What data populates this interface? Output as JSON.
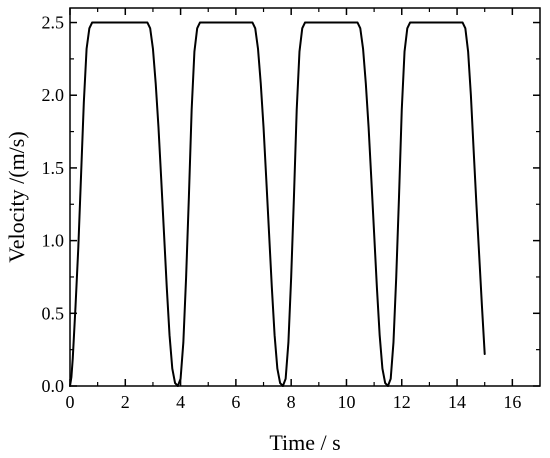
{
  "chart_data": {
    "type": "line",
    "title": "",
    "xlabel": "Time / s",
    "ylabel": "Velocity /(m/s)",
    "xlim": [
      0,
      17
    ],
    "ylim": [
      0,
      2.6
    ],
    "grid": false,
    "legend": "none",
    "line_color": "#000000",
    "xticks": [
      0,
      2,
      4,
      6,
      8,
      10,
      12,
      14,
      16
    ],
    "xtick_labels": [
      "0",
      "2",
      "4",
      "6",
      "8",
      "10",
      "12",
      "14",
      "16"
    ],
    "yticks": [
      0.0,
      0.5,
      1.0,
      1.5,
      2.0,
      2.5
    ],
    "ytick_labels": [
      "0.0",
      "0.5",
      "1.0",
      "1.5",
      "2.0",
      "2.5"
    ],
    "series": [
      {
        "points": [
          [
            0.0,
            0.0
          ],
          [
            0.05,
            0.06
          ],
          [
            0.1,
            0.19
          ],
          [
            0.2,
            0.55
          ],
          [
            0.3,
            0.95
          ],
          [
            0.4,
            1.45
          ],
          [
            0.5,
            1.95
          ],
          [
            0.6,
            2.32
          ],
          [
            0.7,
            2.46
          ],
          [
            0.8,
            2.5
          ],
          [
            2.8,
            2.5
          ],
          [
            2.9,
            2.46
          ],
          [
            3.0,
            2.32
          ],
          [
            3.1,
            2.08
          ],
          [
            3.2,
            1.78
          ],
          [
            3.3,
            1.42
          ],
          [
            3.4,
            1.05
          ],
          [
            3.5,
            0.68
          ],
          [
            3.6,
            0.35
          ],
          [
            3.7,
            0.12
          ],
          [
            3.8,
            0.02
          ],
          [
            3.9,
            0.0
          ],
          [
            4.0,
            0.05
          ],
          [
            4.1,
            0.3
          ],
          [
            4.2,
            0.75
          ],
          [
            4.3,
            1.3
          ],
          [
            4.4,
            1.9
          ],
          [
            4.5,
            2.3
          ],
          [
            4.6,
            2.46
          ],
          [
            4.7,
            2.5
          ],
          [
            6.6,
            2.5
          ],
          [
            6.7,
            2.46
          ],
          [
            6.8,
            2.32
          ],
          [
            6.9,
            2.08
          ],
          [
            7.0,
            1.78
          ],
          [
            7.1,
            1.42
          ],
          [
            7.2,
            1.05
          ],
          [
            7.3,
            0.68
          ],
          [
            7.4,
            0.35
          ],
          [
            7.5,
            0.12
          ],
          [
            7.6,
            0.02
          ],
          [
            7.7,
            0.0
          ],
          [
            7.8,
            0.05
          ],
          [
            7.9,
            0.3
          ],
          [
            8.0,
            0.75
          ],
          [
            8.1,
            1.3
          ],
          [
            8.2,
            1.9
          ],
          [
            8.3,
            2.3
          ],
          [
            8.4,
            2.46
          ],
          [
            8.5,
            2.5
          ],
          [
            10.4,
            2.5
          ],
          [
            10.5,
            2.46
          ],
          [
            10.6,
            2.32
          ],
          [
            10.7,
            2.08
          ],
          [
            10.8,
            1.78
          ],
          [
            10.9,
            1.42
          ],
          [
            11.0,
            1.05
          ],
          [
            11.1,
            0.68
          ],
          [
            11.2,
            0.35
          ],
          [
            11.3,
            0.12
          ],
          [
            11.4,
            0.02
          ],
          [
            11.5,
            0.0
          ],
          [
            11.6,
            0.05
          ],
          [
            11.7,
            0.3
          ],
          [
            11.8,
            0.75
          ],
          [
            11.9,
            1.3
          ],
          [
            12.0,
            1.9
          ],
          [
            12.1,
            2.3
          ],
          [
            12.2,
            2.46
          ],
          [
            12.3,
            2.5
          ],
          [
            14.2,
            2.5
          ],
          [
            14.3,
            2.46
          ],
          [
            14.4,
            2.3
          ],
          [
            14.5,
            2.0
          ],
          [
            14.6,
            1.62
          ],
          [
            14.7,
            1.25
          ],
          [
            14.8,
            0.9
          ],
          [
            14.9,
            0.55
          ],
          [
            15.0,
            0.22
          ]
        ]
      }
    ]
  }
}
